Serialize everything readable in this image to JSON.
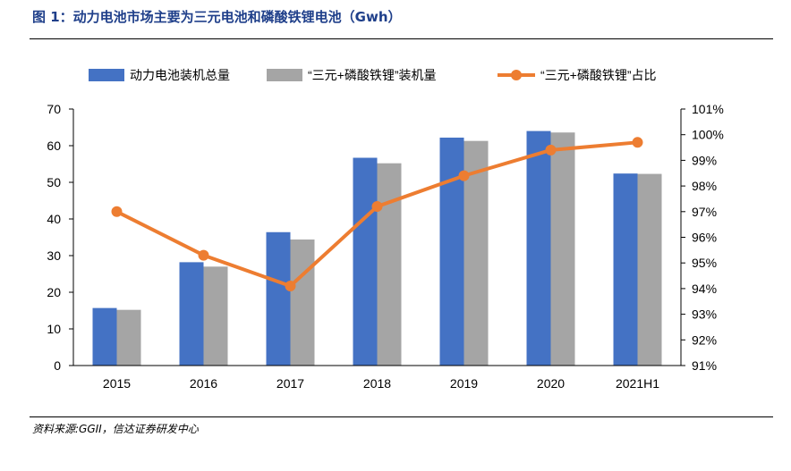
{
  "title": "图 1：动力电池市场主要为三元电池和磷酸铁锂电池（Gwh）",
  "source": "资料来源:GGII，信达证券研发中心",
  "colors": {
    "series1": "#4472c4",
    "series2": "#a5a5a5",
    "series3": "#ed7d31",
    "title": "#1f3f8a"
  },
  "chart_data": {
    "type": "bar",
    "categories": [
      "2015",
      "2016",
      "2017",
      "2018",
      "2019",
      "2020",
      "2021H1"
    ],
    "series": [
      {
        "name": "动力电池装机总量",
        "type": "bar",
        "axis": "left",
        "values": [
          15.7,
          28.2,
          36.4,
          56.7,
          62.2,
          64.0,
          52.4
        ]
      },
      {
        "name": "“三元+磷酸铁锂”装机量",
        "type": "bar",
        "axis": "left",
        "values": [
          15.2,
          27.0,
          34.4,
          55.2,
          61.3,
          63.6,
          52.3
        ]
      },
      {
        "name": "“三元+磷酸铁锂”占比",
        "type": "line",
        "axis": "right",
        "values": [
          97.0,
          95.3,
          94.1,
          97.2,
          98.4,
          99.4,
          99.7
        ]
      }
    ],
    "ylim": [
      0,
      70
    ],
    "yticks": [
      "0",
      "10",
      "20",
      "30",
      "40",
      "50",
      "60",
      "70"
    ],
    "y2lim": [
      91,
      101
    ],
    "y2ticks": [
      "91%",
      "92%",
      "93%",
      "94%",
      "95%",
      "96%",
      "97%",
      "98%",
      "99%",
      "100%",
      "101%"
    ],
    "legend_position": "top",
    "grid": false
  }
}
